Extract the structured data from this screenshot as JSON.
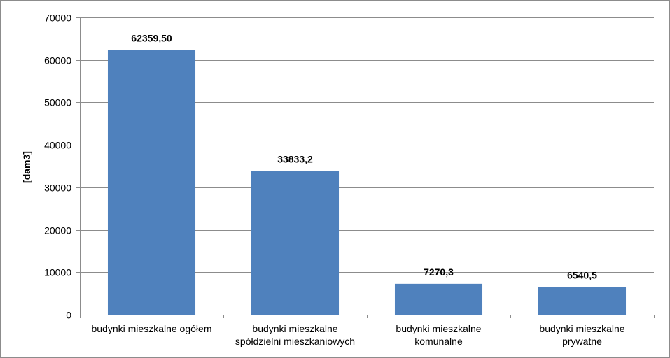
{
  "chart_data": {
    "type": "bar",
    "title": "",
    "xlabel": "",
    "ylabel": "[dam3]",
    "ylim": [
      0,
      70000
    ],
    "yticks": [
      0,
      10000,
      20000,
      30000,
      40000,
      50000,
      60000,
      70000
    ],
    "grid": true,
    "legend": "none",
    "categories": [
      [
        "budynki mieszkalne ogółem"
      ],
      [
        "budynki mieszkalne",
        "spółdzielni mieszkaniowych"
      ],
      [
        "budynki mieszkalne",
        "komunalne"
      ],
      [
        "budynki mieszkalne",
        "prywatne"
      ]
    ],
    "values": [
      62359.5,
      33833.2,
      7270.3,
      6540.5
    ],
    "data_labels": [
      "62359,50",
      "33833,2",
      "7270,3",
      "6540,5"
    ],
    "colors": {
      "bar": "#4f81bd",
      "grid": "#8c8c8c",
      "axis": "#8c8c8c"
    }
  }
}
